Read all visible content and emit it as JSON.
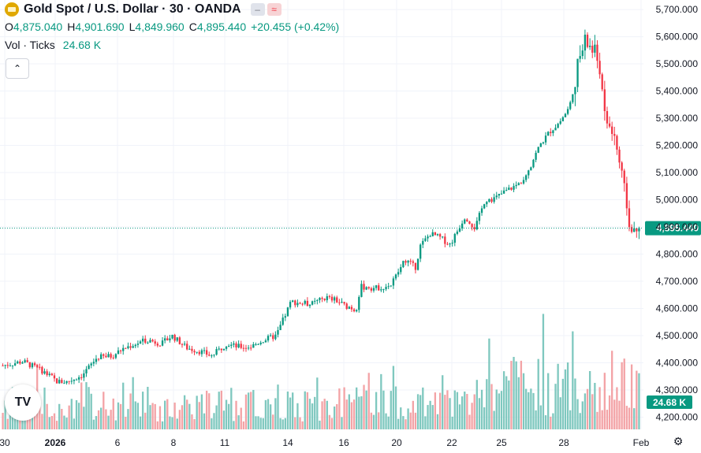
{
  "header": {
    "title": "Gold Spot / U.S. Dollar · 30 · OANDA",
    "badge_left": "‒",
    "badge_right": "≈",
    "ohlc": [
      {
        "k": "O",
        "v": "4,875.040"
      },
      {
        "k": "H",
        "v": "4,901.690"
      },
      {
        "k": "L",
        "v": "4,849.960"
      },
      {
        "k": "C",
        "v": "4,895.440"
      },
      {
        "k": "",
        "v": "+20.455 (+0.42%)"
      }
    ],
    "volume_label": "Vol · Ticks",
    "volume_value": "24.68 K",
    "collapse_glyph": "⌃"
  },
  "logo_text": "TV",
  "settings_glyph": "⚙",
  "colors": {
    "up": "#089981",
    "down": "#f23645",
    "up_volume": "#7fc8bf",
    "down_volume": "#f3a3a6",
    "grid": "#f0f3fa",
    "text": "#131722"
  },
  "chart_data": {
    "type": "candlestick",
    "y_ticks": [
      "5,700.000",
      "5,600.000",
      "5,500.000",
      "5,400.000",
      "5,300.000",
      "5,200.000",
      "5,100.000",
      "5,000.000",
      "4,900.000",
      "4,800.000",
      "4,700.000",
      "4,600.000",
      "4,500.000",
      "4,400.000",
      "4,300.000",
      "4,200.000"
    ],
    "y_tick_values": [
      5700,
      5600,
      5500,
      5400,
      5300,
      5200,
      5100,
      5000,
      4900,
      4800,
      4700,
      4600,
      4500,
      4400,
      4300,
      4200
    ],
    "ylim": [
      4155,
      5735
    ],
    "x_ticks": [
      "30",
      "2026",
      "6",
      "8",
      "11",
      "14",
      "16",
      "20",
      "22",
      "25",
      "28",
      "Feb"
    ],
    "x_tick_bold": [
      false,
      true,
      false,
      false,
      false,
      false,
      false,
      false,
      false,
      false,
      false,
      false
    ],
    "last_price": 4895.44,
    "last_price_label": "4,895.440",
    "last_volume_label": "24.68 K",
    "price_path": [
      [
        0,
        4390
      ],
      [
        4,
        4405
      ],
      [
        8,
        4370
      ],
      [
        11,
        4330
      ],
      [
        13,
        4330
      ],
      [
        16,
        4355
      ],
      [
        19,
        4420
      ],
      [
        22,
        4425
      ],
      [
        24,
        4450
      ],
      [
        26,
        4465
      ],
      [
        29,
        4485
      ],
      [
        32,
        4470
      ],
      [
        34,
        4500
      ],
      [
        37,
        4455
      ],
      [
        40,
        4440
      ],
      [
        42,
        4425
      ],
      [
        45,
        4470
      ],
      [
        47,
        4460
      ],
      [
        49,
        4458
      ],
      [
        50,
        4460
      ],
      [
        52,
        4480
      ],
      [
        55,
        4500
      ],
      [
        58,
        4625
      ],
      [
        60,
        4620
      ],
      [
        62,
        4615
      ],
      [
        65,
        4640
      ],
      [
        67,
        4630
      ],
      [
        69,
        4608
      ],
      [
        70,
        4605
      ],
      [
        71,
        4590
      ],
      [
        72,
        4680
      ],
      [
        75,
        4675
      ],
      [
        78,
        4685
      ],
      [
        81,
        4780
      ],
      [
        83,
        4750
      ],
      [
        84,
        4830
      ],
      [
        86,
        4875
      ],
      [
        88,
        4860
      ],
      [
        90,
        4835
      ],
      [
        93,
        4940
      ],
      [
        95,
        4895
      ],
      [
        97,
        5000
      ],
      [
        99,
        5005
      ],
      [
        101,
        5030
      ],
      [
        104,
        5060
      ],
      [
        106,
        5120
      ],
      [
        108,
        5200
      ],
      [
        110,
        5250
      ],
      [
        112,
        5285
      ],
      [
        114,
        5340
      ],
      [
        116,
        5520
      ],
      [
        117,
        5580
      ],
      [
        118,
        5570
      ],
      [
        119,
        5540
      ],
      [
        120,
        5505
      ],
      [
        121,
        5300
      ],
      [
        123,
        5240
      ],
      [
        124,
        5140
      ],
      [
        125,
        5030
      ],
      [
        126,
        4930
      ],
      [
        127,
        4860
      ],
      [
        128,
        4895
      ]
    ],
    "volume_range": [
      180,
      580
    ]
  }
}
